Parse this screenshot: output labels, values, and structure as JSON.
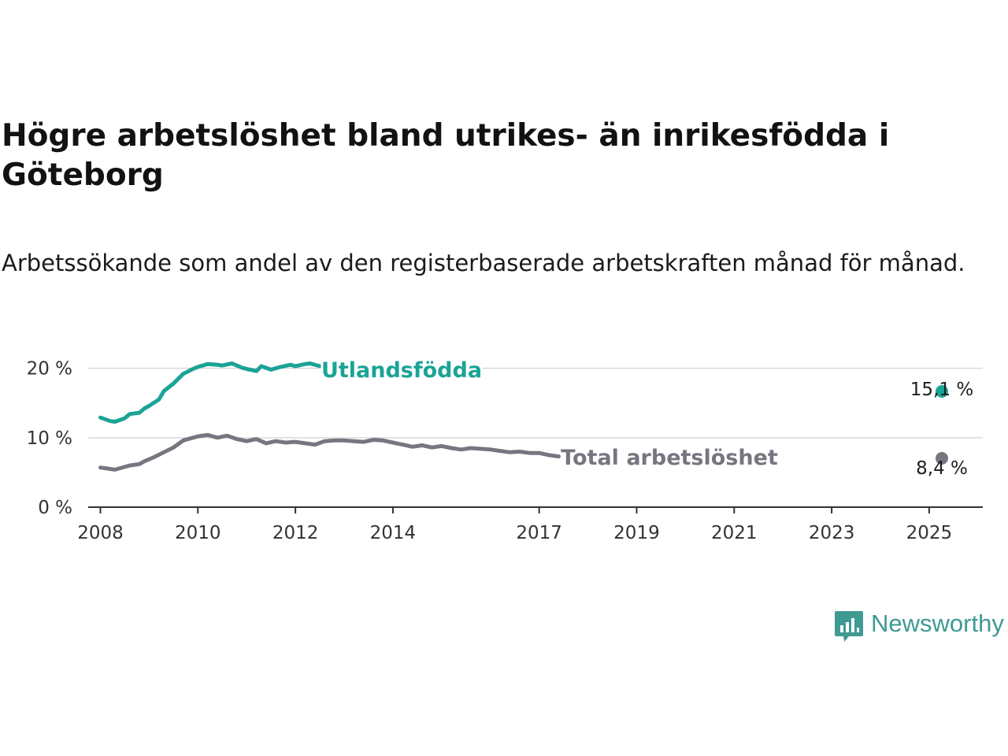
{
  "title": "Högre arbetslöshet bland utrikes- än inrikesfödda i Göteborg",
  "subtitle": "Arbetssökande som andel av den registerbaserade arbetskraften månad för månad.",
  "brand": {
    "name": "Newsworthy",
    "color": "#3f9a93",
    "icon": "bar-chart-speech-bubble-icon"
  },
  "chart_data": {
    "type": "line",
    "x_ticks": [
      "2008",
      "2010",
      "2012",
      "2014",
      "2017",
      "2019",
      "2021",
      "2023",
      "2025"
    ],
    "y_ticks": [
      "0 %",
      "10 %",
      "20 %"
    ],
    "ylim": [
      0,
      22
    ],
    "xlim": [
      2007.75,
      2026.1
    ],
    "grid": true,
    "series": [
      {
        "name": "Utlandsfödda",
        "color": "#1ba396",
        "end_label": "15,1 %",
        "points": [
          [
            2008.0,
            12.9
          ],
          [
            2008.2,
            12.4
          ],
          [
            2008.3,
            12.3
          ],
          [
            2008.5,
            12.8
          ],
          [
            2008.6,
            13.4
          ],
          [
            2008.8,
            13.6
          ],
          [
            2008.9,
            14.2
          ],
          [
            2009.0,
            14.6
          ],
          [
            2009.2,
            15.5
          ],
          [
            2009.3,
            16.7
          ],
          [
            2009.5,
            17.8
          ],
          [
            2009.7,
            19.2
          ],
          [
            2009.9,
            19.9
          ],
          [
            2010.0,
            20.2
          ],
          [
            2010.2,
            20.6
          ],
          [
            2010.4,
            20.5
          ],
          [
            2010.5,
            20.4
          ],
          [
            2010.7,
            20.7
          ],
          [
            2010.9,
            20.1
          ],
          [
            2011.0,
            19.9
          ],
          [
            2011.2,
            19.6
          ],
          [
            2011.3,
            20.3
          ],
          [
            2011.5,
            19.8
          ],
          [
            2011.7,
            20.2
          ],
          [
            2011.9,
            20.5
          ],
          [
            2012.0,
            20.3
          ],
          [
            2012.2,
            20.6
          ],
          [
            2012.3,
            20.7
          ],
          [
            2012.5,
            20.3
          ]
        ]
      },
      {
        "name": "Total arbetslöshet",
        "color": "#777680",
        "end_label": "8,4 %",
        "points": [
          [
            2008.0,
            5.7
          ],
          [
            2008.2,
            5.5
          ],
          [
            2008.3,
            5.4
          ],
          [
            2008.5,
            5.8
          ],
          [
            2008.6,
            6.0
          ],
          [
            2008.8,
            6.2
          ],
          [
            2008.9,
            6.6
          ],
          [
            2009.1,
            7.2
          ],
          [
            2009.3,
            7.9
          ],
          [
            2009.5,
            8.6
          ],
          [
            2009.7,
            9.6
          ],
          [
            2009.9,
            10.0
          ],
          [
            2010.0,
            10.2
          ],
          [
            2010.2,
            10.4
          ],
          [
            2010.4,
            10.0
          ],
          [
            2010.6,
            10.3
          ],
          [
            2010.8,
            9.8
          ],
          [
            2011.0,
            9.5
          ],
          [
            2011.2,
            9.8
          ],
          [
            2011.4,
            9.2
          ],
          [
            2011.6,
            9.5
          ],
          [
            2011.8,
            9.3
          ],
          [
            2012.0,
            9.4
          ],
          [
            2012.2,
            9.2
          ],
          [
            2012.4,
            9.0
          ],
          [
            2012.6,
            9.5
          ],
          [
            2012.8,
            9.6
          ],
          [
            2013.0,
            9.6
          ],
          [
            2013.2,
            9.5
          ],
          [
            2013.4,
            9.4
          ],
          [
            2013.6,
            9.7
          ],
          [
            2013.8,
            9.6
          ],
          [
            2014.0,
            9.3
          ],
          [
            2014.2,
            9.0
          ],
          [
            2014.4,
            8.7
          ],
          [
            2014.6,
            8.9
          ],
          [
            2014.8,
            8.6
          ],
          [
            2015.0,
            8.8
          ],
          [
            2015.2,
            8.5
          ],
          [
            2015.4,
            8.3
          ],
          [
            2015.6,
            8.5
          ],
          [
            2015.8,
            8.4
          ],
          [
            2016.0,
            8.3
          ],
          [
            2016.2,
            8.1
          ],
          [
            2016.4,
            7.9
          ],
          [
            2016.6,
            8.0
          ],
          [
            2016.8,
            7.8
          ],
          [
            2017.0,
            7.8
          ],
          [
            2017.2,
            7.5
          ],
          [
            2017.4,
            7.3
          ]
        ]
      }
    ]
  }
}
